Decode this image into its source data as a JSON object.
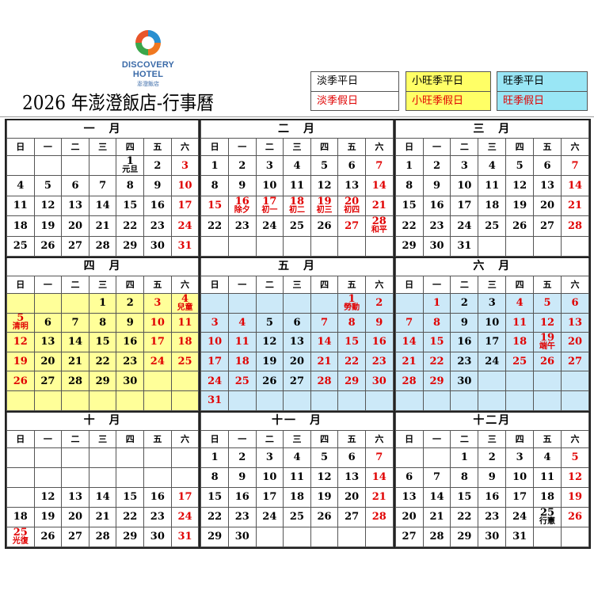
{
  "header": {
    "brand": "DISCOVERY HOTEL",
    "brand_sub": "澎澄飯店",
    "title": "2026 年澎澄飯店-行事曆"
  },
  "legend": [
    {
      "weekday": "淡季平日",
      "holiday": "淡季假日",
      "bg": "#ffffff"
    },
    {
      "weekday": "小旺季平日",
      "holiday": "小旺季假日",
      "bg": "#ffff66"
    },
    {
      "weekday": "旺季平日",
      "holiday": "旺季假日",
      "bg": "#99e6f5"
    }
  ],
  "colors": {
    "holiday": "#e00000",
    "low_season": "#ffffff",
    "mid_season": "#ffff99",
    "high_season": "#cce9f8"
  },
  "weekdays": [
    "日",
    "一",
    "二",
    "三",
    "四",
    "五",
    "六"
  ],
  "months": [
    {
      "name": "一　月",
      "season": "low_season",
      "weeks": [
        [
          "",
          "",
          "",
          "",
          "1",
          "2",
          "3"
        ],
        [
          "4",
          "5",
          "6",
          "7",
          "8",
          "9",
          "10"
        ],
        [
          "11",
          "12",
          "13",
          "14",
          "15",
          "16",
          "17"
        ],
        [
          "18",
          "19",
          "20",
          "21",
          "22",
          "23",
          "24"
        ],
        [
          "25",
          "26",
          "27",
          "28",
          "29",
          "30",
          "31"
        ]
      ],
      "red": [
        "3",
        "10",
        "17",
        "24",
        "31"
      ],
      "notes": {
        "1": "元旦"
      }
    },
    {
      "name": "二　月",
      "season": "low_season",
      "weeks": [
        [
          "1",
          "2",
          "3",
          "4",
          "5",
          "6",
          "7"
        ],
        [
          "8",
          "9",
          "10",
          "11",
          "12",
          "13",
          "14"
        ],
        [
          "15",
          "16",
          "17",
          "18",
          "19",
          "20",
          "21"
        ],
        [
          "22",
          "23",
          "24",
          "25",
          "26",
          "27",
          "28"
        ],
        [
          "",
          "",
          "",
          "",
          "",
          "",
          ""
        ]
      ],
      "red": [
        "7",
        "14",
        "15",
        "16",
        "17",
        "18",
        "19",
        "20",
        "21",
        "27",
        "28"
      ],
      "notes": {
        "16": "除夕",
        "17": "初一",
        "18": "初二",
        "19": "初三",
        "20": "初四",
        "28": "和平"
      }
    },
    {
      "name": "三　月",
      "season": "low_season",
      "weeks": [
        [
          "1",
          "2",
          "3",
          "4",
          "5",
          "6",
          "7"
        ],
        [
          "8",
          "9",
          "10",
          "11",
          "12",
          "13",
          "14"
        ],
        [
          "15",
          "16",
          "17",
          "18",
          "19",
          "20",
          "21"
        ],
        [
          "22",
          "23",
          "24",
          "25",
          "26",
          "27",
          "28"
        ],
        [
          "29",
          "30",
          "31",
          "",
          "",
          "",
          ""
        ]
      ],
      "red": [
        "7",
        "14",
        "21",
        "28"
      ],
      "notes": {}
    },
    {
      "name": "四　月",
      "season": "mid_season",
      "weeks": [
        [
          "",
          "",
          "",
          "1",
          "2",
          "3",
          "4"
        ],
        [
          "5",
          "6",
          "7",
          "8",
          "9",
          "10",
          "11"
        ],
        [
          "12",
          "13",
          "14",
          "15",
          "16",
          "17",
          "18"
        ],
        [
          "19",
          "20",
          "21",
          "22",
          "23",
          "24",
          "25"
        ],
        [
          "26",
          "27",
          "28",
          "29",
          "30",
          "",
          ""
        ],
        [
          "",
          "",
          "",
          "",
          "",
          "",
          ""
        ]
      ],
      "red": [
        "3",
        "4",
        "5",
        "10",
        "11",
        "12",
        "17",
        "18",
        "19",
        "24",
        "25",
        "26"
      ],
      "notes": {
        "4": "兒童",
        "5": "清明"
      }
    },
    {
      "name": "五　月",
      "season": "high_season",
      "weeks": [
        [
          "",
          "",
          "",
          "",
          "",
          "1",
          "2"
        ],
        [
          "3",
          "4",
          "5",
          "6",
          "7",
          "8",
          "9"
        ],
        [
          "10",
          "11",
          "12",
          "13",
          "14",
          "15",
          "16"
        ],
        [
          "17",
          "18",
          "19",
          "20",
          "21",
          "22",
          "23"
        ],
        [
          "24",
          "25",
          "26",
          "27",
          "28",
          "29",
          "30"
        ],
        [
          "31",
          "",
          "",
          "",
          "",
          "",
          ""
        ]
      ],
      "red": [
        "1",
        "2",
        "3",
        "4",
        "7",
        "8",
        "9",
        "10",
        "11",
        "14",
        "15",
        "16",
        "17",
        "18",
        "21",
        "22",
        "23",
        "24",
        "25",
        "28",
        "29",
        "30",
        "31"
      ],
      "notes": {
        "1": "勞動"
      }
    },
    {
      "name": "六　月",
      "season": "high_season",
      "weeks": [
        [
          "",
          "1",
          "2",
          "3",
          "4",
          "5",
          "6"
        ],
        [
          "7",
          "8",
          "9",
          "10",
          "11",
          "12",
          "13"
        ],
        [
          "14",
          "15",
          "16",
          "17",
          "18",
          "19",
          "20"
        ],
        [
          "21",
          "22",
          "23",
          "24",
          "25",
          "26",
          "27"
        ],
        [
          "28",
          "29",
          "30",
          "",
          "",
          "",
          ""
        ],
        [
          "",
          "",
          "",
          "",
          "",
          "",
          ""
        ]
      ],
      "red": [
        "1",
        "4",
        "5",
        "6",
        "7",
        "8",
        "11",
        "12",
        "13",
        "14",
        "15",
        "18",
        "19",
        "20",
        "21",
        "22",
        "25",
        "26",
        "27",
        "28",
        "29"
      ],
      "notes": {
        "19": "端午"
      }
    },
    {
      "name": "十　月",
      "season": "low_season",
      "weeks": [
        [
          "",
          "",
          "",
          "",
          "",
          "",
          ""
        ],
        [
          "",
          "",
          "",
          "",
          "",
          "",
          ""
        ],
        [
          "",
          "12",
          "13",
          "14",
          "15",
          "16",
          "17"
        ],
        [
          "18",
          "19",
          "20",
          "21",
          "22",
          "23",
          "24"
        ],
        [
          "25",
          "26",
          "27",
          "28",
          "29",
          "30",
          "31"
        ]
      ],
      "red": [
        "17",
        "24",
        "25",
        "31"
      ],
      "notes": {
        "25": "光復"
      }
    },
    {
      "name": "十一　月",
      "season": "low_season",
      "weeks": [
        [
          "1",
          "2",
          "3",
          "4",
          "5",
          "6",
          "7"
        ],
        [
          "8",
          "9",
          "10",
          "11",
          "12",
          "13",
          "14"
        ],
        [
          "15",
          "16",
          "17",
          "18",
          "19",
          "20",
          "21"
        ],
        [
          "22",
          "23",
          "24",
          "25",
          "26",
          "27",
          "28"
        ],
        [
          "29",
          "30",
          "",
          "",
          "",
          "",
          ""
        ]
      ],
      "red": [
        "7",
        "14",
        "21",
        "28"
      ],
      "notes": {}
    },
    {
      "name": "十二月",
      "season": "low_season",
      "weeks": [
        [
          "",
          "",
          "1",
          "2",
          "3",
          "4",
          "5"
        ],
        [
          "6",
          "7",
          "8",
          "9",
          "10",
          "11",
          "12"
        ],
        [
          "13",
          "14",
          "15",
          "16",
          "17",
          "18",
          "19"
        ],
        [
          "20",
          "21",
          "22",
          "23",
          "24",
          "25",
          "26"
        ],
        [
          "27",
          "28",
          "29",
          "30",
          "31",
          "",
          ""
        ]
      ],
      "red": [
        "5",
        "12",
        "19",
        "26"
      ],
      "notes": {
        "25": "行憲"
      }
    }
  ]
}
